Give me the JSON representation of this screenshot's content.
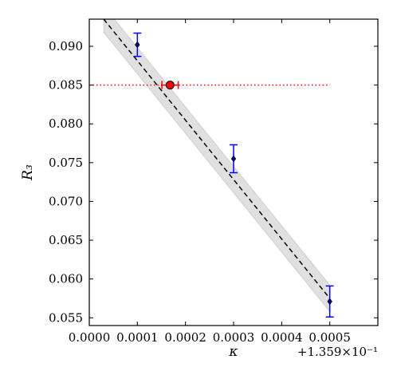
{
  "chart_data": {
    "type": "scatter",
    "xlabel": "κ",
    "ylabel": "R₃",
    "x_offset_label": "+1.359×10⁻¹",
    "xlim": [
      0.0,
      0.0006
    ],
    "ylim": [
      0.054,
      0.0935
    ],
    "x_ticks": [
      0.0,
      0.0001,
      0.0002,
      0.0003,
      0.0004,
      0.0005
    ],
    "x_tick_labels": [
      "0.0000",
      "0.0001",
      "0.0002",
      "0.0003",
      "0.0004",
      "0.0005"
    ],
    "y_ticks": [
      0.055,
      0.06,
      0.065,
      0.07,
      0.075,
      0.08,
      0.085,
      0.09
    ],
    "y_tick_labels": [
      "0.055",
      "0.060",
      "0.065",
      "0.070",
      "0.075",
      "0.080",
      "0.085",
      "0.090"
    ],
    "grid": false,
    "series": [
      {
        "kind": "points_with_errorbars",
        "color": "#0000ff",
        "marker_color": "#000080",
        "points": [
          {
            "x": 0.0001,
            "y": 0.0902,
            "yerr": 0.0015
          },
          {
            "x": 0.0003,
            "y": 0.0755,
            "yerr": 0.0018
          },
          {
            "x": 0.0005,
            "y": 0.0571,
            "yerr": 0.002
          }
        ]
      },
      {
        "kind": "linear_fit",
        "color": "#000000",
        "style": "dashed",
        "x": [
          3e-05,
          0.0005
        ],
        "y": [
          0.0935,
          0.0575
        ],
        "band_halfwidth": 0.0017,
        "band_color": "#e0e0e0"
      },
      {
        "kind": "reference_line",
        "color": "#ff0000",
        "style": "dotted",
        "y": 0.085,
        "x_range": [
          0.0,
          0.0005
        ]
      },
      {
        "kind": "estimate",
        "color": "#ff0000",
        "x": 0.000168,
        "y": 0.085,
        "xerr": 1.7e-05
      }
    ]
  }
}
